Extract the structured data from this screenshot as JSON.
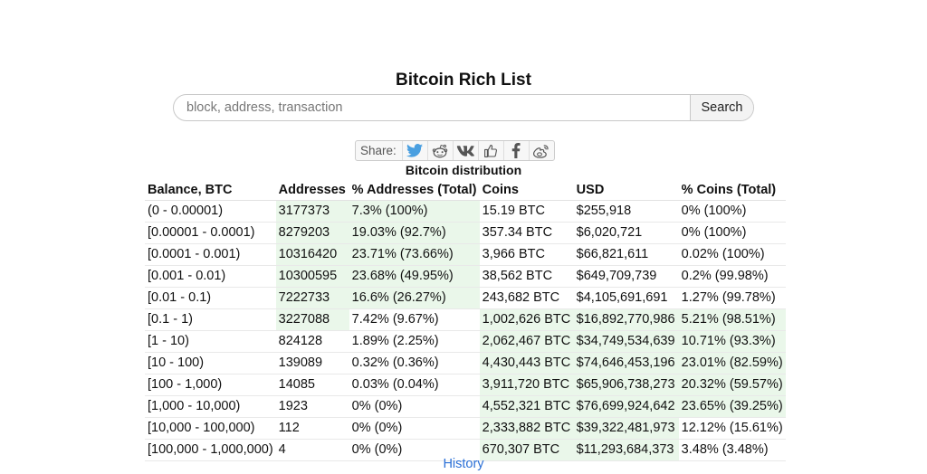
{
  "page": {
    "title": "Bitcoin Rich List"
  },
  "search": {
    "placeholder": "block, address, transaction",
    "value": "",
    "button_label": "Search"
  },
  "share": {
    "label": "Share:",
    "icons": [
      "twitter-icon",
      "reddit-icon",
      "vk-icon",
      "like-icon",
      "facebook-icon",
      "weibo-icon"
    ]
  },
  "distribution": {
    "title": "Bitcoin distribution",
    "headers": [
      "Balance, BTC",
      "Addresses",
      "% Addresses (Total)",
      "Coins",
      "USD",
      "% Coins (Total)"
    ],
    "rows": [
      {
        "balance": "(0 - 0.00001)",
        "addresses": "3177373",
        "pct_addresses": "7.3% (100%)",
        "coins": "15.19 BTC",
        "usd": "$255,918",
        "pct_coins": "0% (100%)",
        "hl": [
          true,
          true,
          false,
          false,
          false
        ]
      },
      {
        "balance": "[0.00001 - 0.0001)",
        "addresses": "8279203",
        "pct_addresses": "19.03% (92.7%)",
        "coins": "357.34 BTC",
        "usd": "$6,020,721",
        "pct_coins": "0% (100%)",
        "hl": [
          true,
          true,
          false,
          false,
          false
        ]
      },
      {
        "balance": "[0.0001 - 0.001)",
        "addresses": "10316420",
        "pct_addresses": "23.71% (73.66%)",
        "coins": "3,966 BTC",
        "usd": "$66,821,611",
        "pct_coins": "0.02% (100%)",
        "hl": [
          true,
          true,
          false,
          false,
          false
        ]
      },
      {
        "balance": "[0.001 - 0.01)",
        "addresses": "10300595",
        "pct_addresses": "23.68% (49.95%)",
        "coins": "38,562 BTC",
        "usd": "$649,709,739",
        "pct_coins": "0.2% (99.98%)",
        "hl": [
          true,
          true,
          false,
          false,
          false
        ]
      },
      {
        "balance": "[0.01 - 0.1)",
        "addresses": "7222733",
        "pct_addresses": "16.6% (26.27%)",
        "coins": "243,682 BTC",
        "usd": "$4,105,691,691",
        "pct_coins": "1.27% (99.78%)",
        "hl": [
          true,
          true,
          false,
          false,
          false
        ]
      },
      {
        "balance": "[0.1 - 1)",
        "addresses": "3227088",
        "pct_addresses": "7.42% (9.67%)",
        "coins": "1,002,626 BTC",
        "usd": "$16,892,770,986",
        "pct_coins": "5.21% (98.51%)",
        "hl": [
          true,
          false,
          true,
          true,
          true
        ]
      },
      {
        "balance": "[1 - 10)",
        "addresses": "824128",
        "pct_addresses": "1.89% (2.25%)",
        "coins": "2,062,467 BTC",
        "usd": "$34,749,534,639",
        "pct_coins": "10.71% (93.3%)",
        "hl": [
          false,
          false,
          true,
          true,
          true
        ]
      },
      {
        "balance": "[10 - 100)",
        "addresses": "139089",
        "pct_addresses": "0.32% (0.36%)",
        "coins": "4,430,443 BTC",
        "usd": "$74,646,453,196",
        "pct_coins": "23.01% (82.59%)",
        "hl": [
          false,
          false,
          true,
          true,
          true
        ]
      },
      {
        "balance": "[100 - 1,000)",
        "addresses": "14085",
        "pct_addresses": "0.03% (0.04%)",
        "coins": "3,911,720 BTC",
        "usd": "$65,906,738,273",
        "pct_coins": "20.32% (59.57%)",
        "hl": [
          false,
          false,
          true,
          true,
          true
        ]
      },
      {
        "balance": "[1,000 - 10,000)",
        "addresses": "1923",
        "pct_addresses": "0% (0%)",
        "coins": "4,552,321 BTC",
        "usd": "$76,699,924,642",
        "pct_coins": "23.65% (39.25%)",
        "hl": [
          false,
          false,
          true,
          true,
          true
        ]
      },
      {
        "balance": "[10,000 - 100,000)",
        "addresses": "112",
        "pct_addresses": "0% (0%)",
        "coins": "2,333,882 BTC",
        "usd": "$39,322,481,973",
        "pct_coins": "12.12% (15.61%)",
        "hl": [
          false,
          false,
          true,
          true,
          false
        ]
      },
      {
        "balance": "[100,000 - 1,000,000)",
        "addresses": "4",
        "pct_addresses": "0% (0%)",
        "coins": "670,307 BTC",
        "usd": "$11,293,684,373",
        "pct_coins": "3.48% (3.48%)",
        "hl": [
          false,
          false,
          true,
          true,
          false
        ]
      }
    ]
  },
  "history_link": "History",
  "colors": {
    "highlight": "#eaf7ea",
    "link": "#2a6fd6",
    "twitter": "#4a9fe0"
  }
}
